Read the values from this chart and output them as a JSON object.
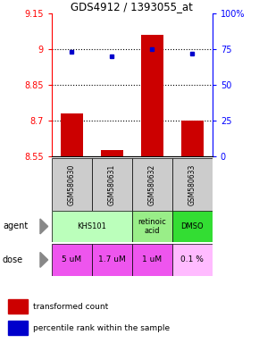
{
  "title": "GDS4912 / 1393055_at",
  "samples": [
    "GSM580630",
    "GSM580631",
    "GSM580632",
    "GSM580633"
  ],
  "bar_values": [
    8.73,
    8.575,
    9.06,
    8.7
  ],
  "bar_bottom": 8.55,
  "percentile_values": [
    73,
    70,
    75,
    72
  ],
  "ylim_left": [
    8.55,
    9.15
  ],
  "ylim_right": [
    0,
    100
  ],
  "yticks_left": [
    8.55,
    8.7,
    8.85,
    9.0,
    9.15
  ],
  "yticks_right": [
    0,
    25,
    50,
    75,
    100
  ],
  "ytick_labels_left": [
    "8.55",
    "8.7",
    "8.85",
    "9",
    "9.15"
  ],
  "ytick_labels_right": [
    "0",
    "25",
    "50",
    "75",
    "100%"
  ],
  "hlines": [
    8.7,
    8.85,
    9.0
  ],
  "bar_color": "#cc0000",
  "dot_color": "#0000cc",
  "agent_merges": [
    [
      0,
      2,
      "KHS101"
    ],
    [
      2,
      3,
      "retinoic\nacid"
    ],
    [
      3,
      4,
      "DMSO"
    ]
  ],
  "agent_colors": [
    "#bbffbb",
    "#bbffbb",
    "#99ee88",
    "#33dd33"
  ],
  "dose_labels": [
    "5 uM",
    "1.7 uM",
    "1 uM",
    "0.1 %"
  ],
  "dose_colors": [
    "#ee55ee",
    "#ee55ee",
    "#ee55ee",
    "#ffbbff"
  ],
  "sample_bg": "#cccccc",
  "legend_red_label": "transformed count",
  "legend_blue_label": "percentile rank within the sample"
}
